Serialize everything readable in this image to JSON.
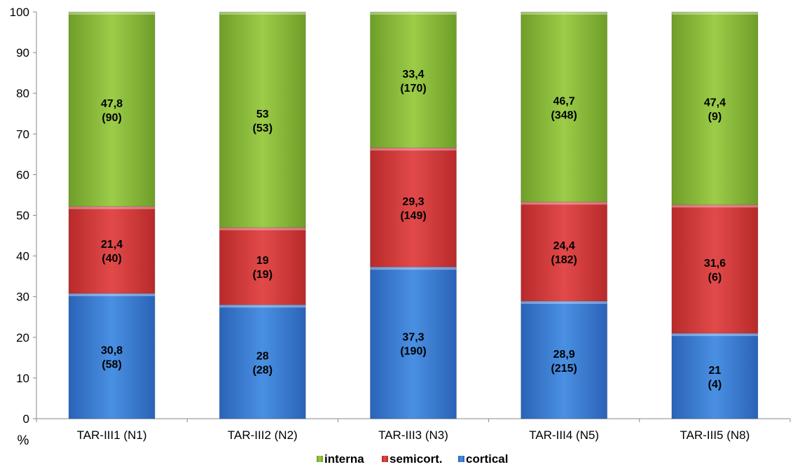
{
  "chart_data": {
    "type": "bar",
    "stacked": true,
    "ylabel": "%",
    "ylim": [
      0,
      100
    ],
    "yticks": [
      0,
      10,
      20,
      30,
      40,
      50,
      60,
      70,
      80,
      90,
      100
    ],
    "grid": false,
    "legend_position": "bottom",
    "categories": [
      "TAR-III1 (N1)",
      "TAR-III2 (N2)",
      "TAR-III3 (N3)",
      "TAR-III4 (N5)",
      "TAR-III5 (N8)"
    ],
    "series": [
      {
        "name": "cortical",
        "color": "#3a7fd5",
        "values": [
          30.8,
          28,
          37.3,
          28.9,
          21
        ],
        "labels": [
          "30,8",
          "28",
          "37,3",
          "28,9",
          "21"
        ],
        "counts": [
          "(58)",
          "(28)",
          "(190)",
          "(215)",
          "(4)"
        ]
      },
      {
        "name": "semicort.",
        "color": "#d63b3b",
        "values": [
          21.4,
          19,
          29.3,
          24.4,
          31.6
        ],
        "labels": [
          "21,4",
          "19",
          "29,3",
          "24,4",
          "31,6"
        ],
        "counts": [
          "(40)",
          "(19)",
          "(149)",
          "(182)",
          "(6)"
        ]
      },
      {
        "name": "interna",
        "color": "#8dbf3a",
        "values": [
          47.8,
          53,
          33.4,
          46.7,
          47.4
        ],
        "labels": [
          "47,8",
          "53",
          "33,4",
          "46,7",
          "47,4"
        ],
        "counts": [
          "(90)",
          "(53)",
          "(170)",
          "(348)",
          "(9)"
        ]
      }
    ],
    "legend_order": [
      "interna",
      "semicort.",
      "cortical"
    ]
  }
}
